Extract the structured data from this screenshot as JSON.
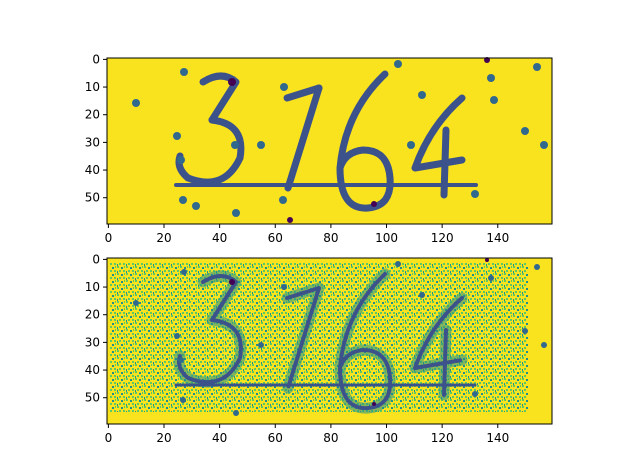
{
  "chart_data": [
    {
      "type": "heatmap",
      "colormap": "viridis",
      "content": "captcha image (smoothed)",
      "shown_characters": "3764",
      "image_shape": [
        60,
        160
      ],
      "xlim": [
        -0.5,
        159.5
      ],
      "ylim": [
        59.5,
        -0.5
      ],
      "xticks": [
        0,
        20,
        40,
        60,
        80,
        100,
        120,
        140
      ],
      "yticks": [
        0,
        10,
        20,
        30,
        40,
        50
      ],
      "colors": {
        "background": "#f9e21e",
        "stroke": "#3b528b",
        "edge": "#21908d",
        "dot": "#31688e",
        "dark": "#440154"
      }
    },
    {
      "type": "heatmap",
      "colormap": "viridis",
      "content": "captcha image (noisy / thresholded)",
      "shown_characters": "3764",
      "image_shape": [
        60,
        160
      ],
      "xlim": [
        -0.5,
        159.5
      ],
      "ylim": [
        59.5,
        -0.5
      ],
      "xticks": [
        0,
        20,
        40,
        60,
        80,
        100,
        120,
        140
      ],
      "yticks": [
        0,
        10,
        20,
        30,
        40,
        50
      ],
      "colors": {
        "background": "#f9e21e",
        "stroke": "#3b528b",
        "edge": "#5ec962",
        "dot": "#31688e",
        "dark": "#440154"
      }
    }
  ]
}
